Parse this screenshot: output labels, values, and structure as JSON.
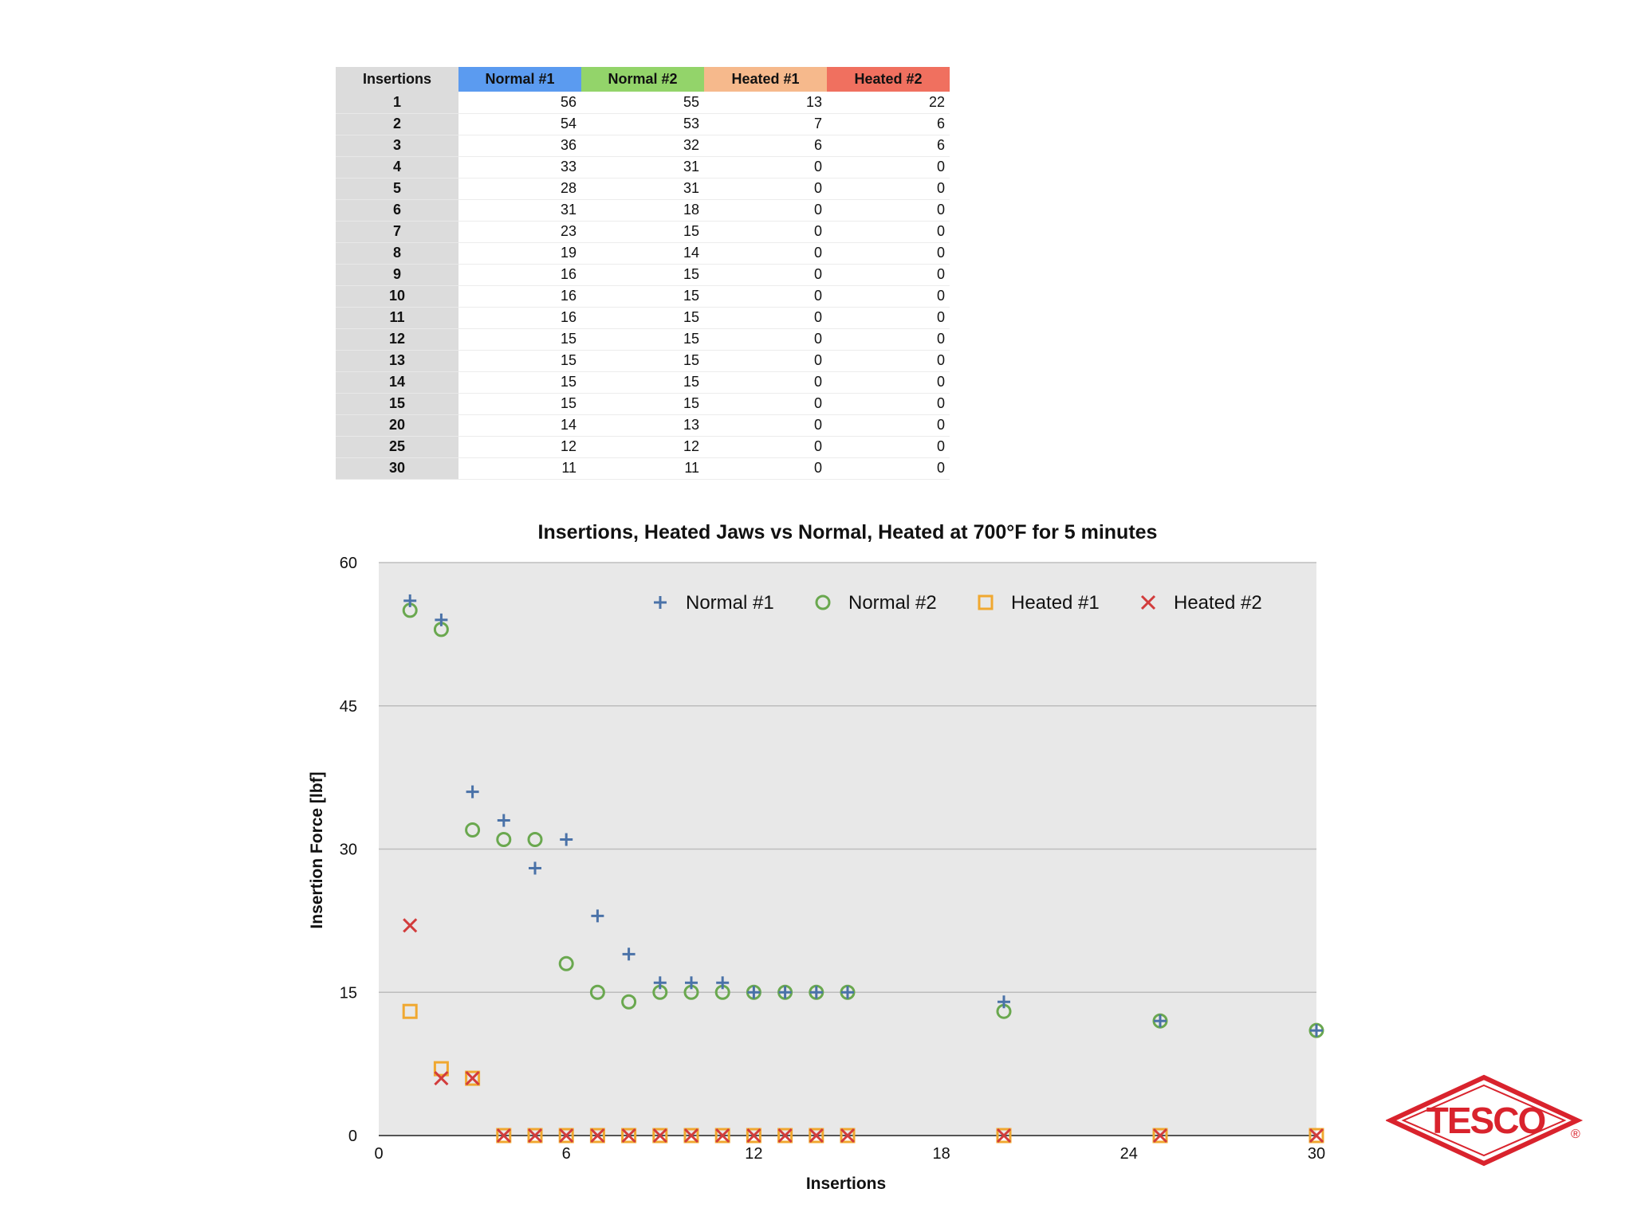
{
  "table": {
    "headers": [
      "Insertions",
      "Normal #1",
      "Normal #2",
      "Heated #1",
      "Heated #2"
    ],
    "header_colors": [
      "#dcdcdc",
      "#5b9bf0",
      "#93d46a",
      "#f6b98c",
      "#f0705f"
    ],
    "rows": [
      [
        "1",
        "56",
        "55",
        "13",
        "22"
      ],
      [
        "2",
        "54",
        "53",
        "7",
        "6"
      ],
      [
        "3",
        "36",
        "32",
        "6",
        "6"
      ],
      [
        "4",
        "33",
        "31",
        "0",
        "0"
      ],
      [
        "5",
        "28",
        "31",
        "0",
        "0"
      ],
      [
        "6",
        "31",
        "18",
        "0",
        "0"
      ],
      [
        "7",
        "23",
        "15",
        "0",
        "0"
      ],
      [
        "8",
        "19",
        "14",
        "0",
        "0"
      ],
      [
        "9",
        "16",
        "15",
        "0",
        "0"
      ],
      [
        "10",
        "16",
        "15",
        "0",
        "0"
      ],
      [
        "11",
        "16",
        "15",
        "0",
        "0"
      ],
      [
        "12",
        "15",
        "15",
        "0",
        "0"
      ],
      [
        "13",
        "15",
        "15",
        "0",
        "0"
      ],
      [
        "14",
        "15",
        "15",
        "0",
        "0"
      ],
      [
        "15",
        "15",
        "15",
        "0",
        "0"
      ],
      [
        "20",
        "14",
        "13",
        "0",
        "0"
      ],
      [
        "25",
        "12",
        "12",
        "0",
        "0"
      ],
      [
        "30",
        "11",
        "11",
        "0",
        "0"
      ]
    ]
  },
  "chart_data": {
    "type": "scatter",
    "title": "Insertions, Heated Jaws vs Normal, Heated at 700°F for 5 minutes",
    "xlabel": "Insertions",
    "ylabel": "Insertion Force [lbf]",
    "xlim": [
      0,
      30
    ],
    "ylim": [
      0,
      60
    ],
    "xticks": [
      0,
      6,
      12,
      18,
      24,
      30
    ],
    "yticks": [
      0,
      15,
      30,
      45,
      60
    ],
    "grid": true,
    "legend_position": "top-right",
    "x": [
      1,
      2,
      3,
      4,
      5,
      6,
      7,
      8,
      9,
      10,
      11,
      12,
      13,
      14,
      15,
      20,
      25,
      30
    ],
    "series": [
      {
        "name": "Normal #1",
        "marker": "plus",
        "color": "#4a72a8",
        "values": [
          56,
          54,
          36,
          33,
          28,
          31,
          23,
          19,
          16,
          16,
          16,
          15,
          15,
          15,
          15,
          14,
          12,
          11
        ]
      },
      {
        "name": "Normal #2",
        "marker": "circle",
        "color": "#6aa84f",
        "values": [
          55,
          53,
          32,
          31,
          31,
          18,
          15,
          14,
          15,
          15,
          15,
          15,
          15,
          15,
          15,
          13,
          12,
          11
        ]
      },
      {
        "name": "Heated #1",
        "marker": "square",
        "color": "#f0a830",
        "values": [
          13,
          7,
          6,
          0,
          0,
          0,
          0,
          0,
          0,
          0,
          0,
          0,
          0,
          0,
          0,
          0,
          0,
          0
        ]
      },
      {
        "name": "Heated #2",
        "marker": "x",
        "color": "#d23c3c",
        "values": [
          22,
          6,
          6,
          0,
          0,
          0,
          0,
          0,
          0,
          0,
          0,
          0,
          0,
          0,
          0,
          0,
          0,
          0
        ]
      }
    ]
  },
  "logo": {
    "text": "TESCO",
    "registered": "®",
    "color": "#d9232d"
  }
}
